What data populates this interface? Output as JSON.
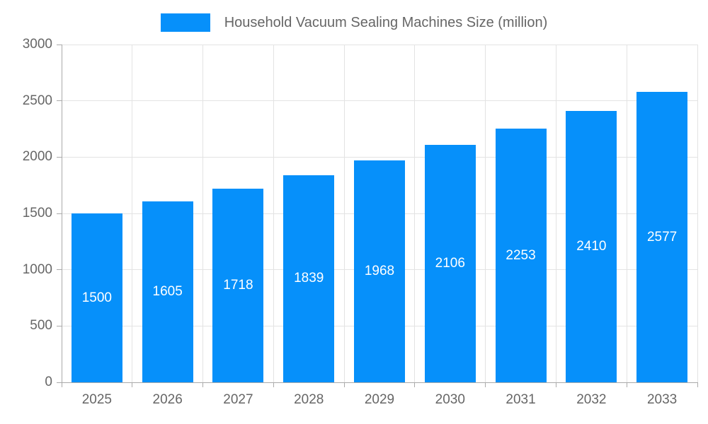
{
  "chart_data": {
    "type": "bar",
    "title": "Household Vacuum Sealing Machines Size (million)",
    "xlabel": "",
    "ylabel": "",
    "categories": [
      "2025",
      "2026",
      "2027",
      "2028",
      "2029",
      "2030",
      "2031",
      "2032",
      "2033"
    ],
    "series": [
      {
        "name": "Household Vacuum Sealing Machines Size (million)",
        "values": [
          1500,
          1605,
          1718,
          1839,
          1968,
          2106,
          2253,
          2410,
          2577
        ]
      }
    ],
    "value_labels_shown": true,
    "ylim": [
      0,
      3000
    ],
    "yticks": [
      0,
      500,
      1000,
      1500,
      2000,
      2500,
      3000
    ],
    "grid": true,
    "legend_position": "top-center",
    "colors": {
      "bar": "#0690fa",
      "grid": "#e3e3e3",
      "axis": "#aaaaaa",
      "tick_label": "#666666",
      "value_label": "#ffffff",
      "background": "#ffffff"
    }
  }
}
